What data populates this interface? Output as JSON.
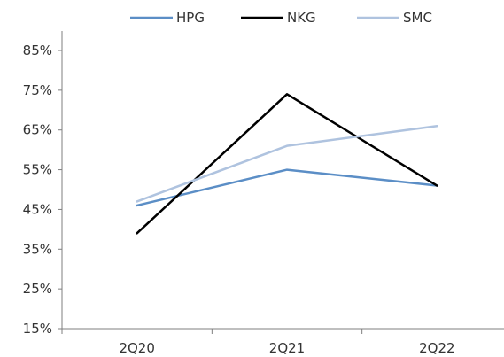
{
  "chart_data": {
    "type": "line",
    "categories": [
      "2Q20",
      "2Q21",
      "2Q22"
    ],
    "series": [
      {
        "name": "HPG",
        "color": "#5b8ec6",
        "values": [
          46,
          55,
          51
        ]
      },
      {
        "name": "NKG",
        "color": "#000000",
        "values": [
          39,
          74,
          51
        ]
      },
      {
        "name": "SMC",
        "color": "#afc3df",
        "values": [
          47,
          61,
          66
        ]
      }
    ],
    "yticks": [
      "15%",
      "25%",
      "35%",
      "45%",
      "55%",
      "65%",
      "75%",
      "85%"
    ],
    "ylim": [
      15,
      85
    ],
    "ytick_values": [
      15,
      25,
      35,
      45,
      55,
      65,
      75,
      85
    ],
    "grid": false,
    "legend_position": "top"
  }
}
